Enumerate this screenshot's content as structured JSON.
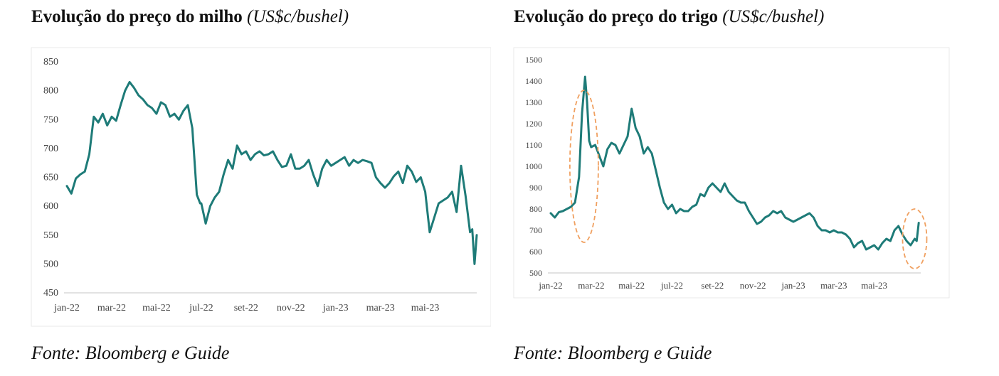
{
  "left": {
    "title": "Evolução do preço do milho",
    "unit": "(US$c/bushel)",
    "source": "Fonte: Bloomberg e Guide"
  },
  "right": {
    "title": "Evolução do preço do trigo",
    "unit": "(US$c/bushel)",
    "source": "Fonte: Bloomberg e Guide"
  },
  "colors": {
    "line": "#1e7b78",
    "highlight": "#f0a060"
  },
  "chart_data": [
    {
      "type": "line",
      "title": "Evolução do preço do milho (US$c/bushel)",
      "xlabel": "",
      "ylabel": "",
      "ylim": [
        450,
        850
      ],
      "yticks": [
        450,
        500,
        550,
        600,
        650,
        700,
        750,
        800,
        850
      ],
      "xticks": [
        "jan-22",
        "mar-22",
        "mai-22",
        "jul-22",
        "set-22",
        "nov-22",
        "jan-23",
        "mar-23",
        "mai-23"
      ],
      "xrange_months": [
        0,
        18.3
      ],
      "grid": false,
      "series": [
        {
          "x": [
            0,
            0.2,
            0.4,
            0.6,
            0.8,
            1.0,
            1.2,
            1.4,
            1.6,
            1.8,
            2.0,
            2.2,
            2.4,
            2.6,
            2.8,
            3.0,
            3.2,
            3.4,
            3.6,
            3.8,
            4.0,
            4.2,
            4.4,
            4.6,
            4.8,
            5.0,
            5.2,
            5.4,
            5.6,
            5.8,
            5.95,
            6.0,
            6.2,
            6.4,
            6.6,
            6.8,
            7.0,
            7.2,
            7.4,
            7.6,
            7.8,
            8.0,
            8.2,
            8.4,
            8.6,
            8.8,
            9.0,
            9.2,
            9.4,
            9.6,
            9.8,
            10.0,
            10.2,
            10.4,
            10.6,
            10.8,
            11.0,
            11.2,
            11.4,
            11.6,
            11.8,
            12.0,
            12.2,
            12.4,
            12.6,
            12.8,
            13.0,
            13.2,
            13.4,
            13.6,
            13.8,
            14.0,
            14.2,
            14.4,
            14.6,
            14.8,
            15.0,
            15.2,
            15.4,
            15.6,
            15.8,
            16.0,
            16.2,
            16.4,
            16.6,
            16.8,
            17.0,
            17.2,
            17.4,
            17.6,
            17.8,
            18.0,
            18.1,
            18.2,
            18.3
          ],
          "y": [
            635,
            622,
            648,
            655,
            660,
            690,
            755,
            745,
            760,
            740,
            755,
            748,
            775,
            800,
            815,
            805,
            792,
            785,
            775,
            770,
            760,
            780,
            775,
            755,
            760,
            750,
            765,
            775,
            735,
            620,
            605,
            605,
            570,
            600,
            615,
            625,
            655,
            680,
            665,
            705,
            690,
            695,
            680,
            690,
            695,
            688,
            690,
            695,
            680,
            668,
            670,
            690,
            665,
            665,
            670,
            680,
            655,
            635,
            665,
            680,
            670,
            675,
            680,
            685,
            670,
            680,
            675,
            680,
            678,
            675,
            650,
            640,
            632,
            640,
            652,
            660,
            640,
            670,
            660,
            642,
            650,
            625,
            555,
            580,
            605,
            610,
            615,
            625,
            590,
            670,
            618,
            555,
            560,
            500,
            550
          ],
          "name": ""
        }
      ]
    },
    {
      "type": "line",
      "title": "Evolução do preço do trigo (US$c/bushel)",
      "xlabel": "",
      "ylabel": "",
      "ylim": [
        500,
        1500
      ],
      "yticks": [
        500,
        600,
        700,
        800,
        900,
        1000,
        1100,
        1200,
        1300,
        1400,
        1500
      ],
      "xticks": [
        "jan-22",
        "mar-22",
        "mai-22",
        "jul-22",
        "set-22",
        "nov-22",
        "jan-23",
        "mar-23",
        "mai-23"
      ],
      "xrange_months": [
        0,
        18.3
      ],
      "grid": false,
      "series": [
        {
          "x": [
            0,
            0.2,
            0.4,
            0.6,
            0.8,
            1.0,
            1.2,
            1.4,
            1.55,
            1.7,
            1.8,
            1.9,
            2.0,
            2.2,
            2.4,
            2.6,
            2.8,
            3.0,
            3.2,
            3.4,
            3.6,
            3.8,
            4.0,
            4.2,
            4.4,
            4.6,
            4.8,
            5.0,
            5.2,
            5.4,
            5.6,
            5.8,
            6.0,
            6.2,
            6.4,
            6.6,
            6.8,
            7.0,
            7.2,
            7.4,
            7.6,
            7.8,
            8.0,
            8.2,
            8.4,
            8.6,
            8.8,
            9.0,
            9.2,
            9.4,
            9.6,
            9.8,
            10.0,
            10.2,
            10.4,
            10.6,
            10.8,
            11.0,
            11.2,
            11.4,
            11.6,
            11.8,
            12.0,
            12.2,
            12.4,
            12.6,
            12.8,
            13.0,
            13.2,
            13.4,
            13.6,
            13.8,
            14.0,
            14.2,
            14.4,
            14.6,
            14.8,
            15.0,
            15.2,
            15.4,
            15.6,
            15.8,
            16.0,
            16.2,
            16.4,
            16.6,
            16.8,
            17.0,
            17.2,
            17.4,
            17.6,
            17.8,
            18.0,
            18.1,
            18.2
          ],
          "y": [
            780,
            760,
            785,
            790,
            800,
            810,
            830,
            950,
            1250,
            1420,
            1300,
            1120,
            1090,
            1100,
            1050,
            1000,
            1080,
            1110,
            1100,
            1060,
            1100,
            1140,
            1270,
            1180,
            1140,
            1060,
            1090,
            1060,
            980,
            900,
            830,
            800,
            820,
            780,
            800,
            790,
            790,
            810,
            820,
            870,
            860,
            900,
            920,
            900,
            880,
            920,
            880,
            860,
            840,
            830,
            830,
            790,
            760,
            730,
            740,
            760,
            770,
            790,
            780,
            790,
            760,
            750,
            740,
            750,
            760,
            770,
            780,
            760,
            720,
            700,
            700,
            690,
            700,
            690,
            690,
            680,
            660,
            620,
            640,
            650,
            610,
            620,
            630,
            610,
            640,
            660,
            650,
            700,
            720,
            680,
            650,
            630,
            660,
            650,
            735
          ],
          "name": ""
        }
      ]
    }
  ]
}
